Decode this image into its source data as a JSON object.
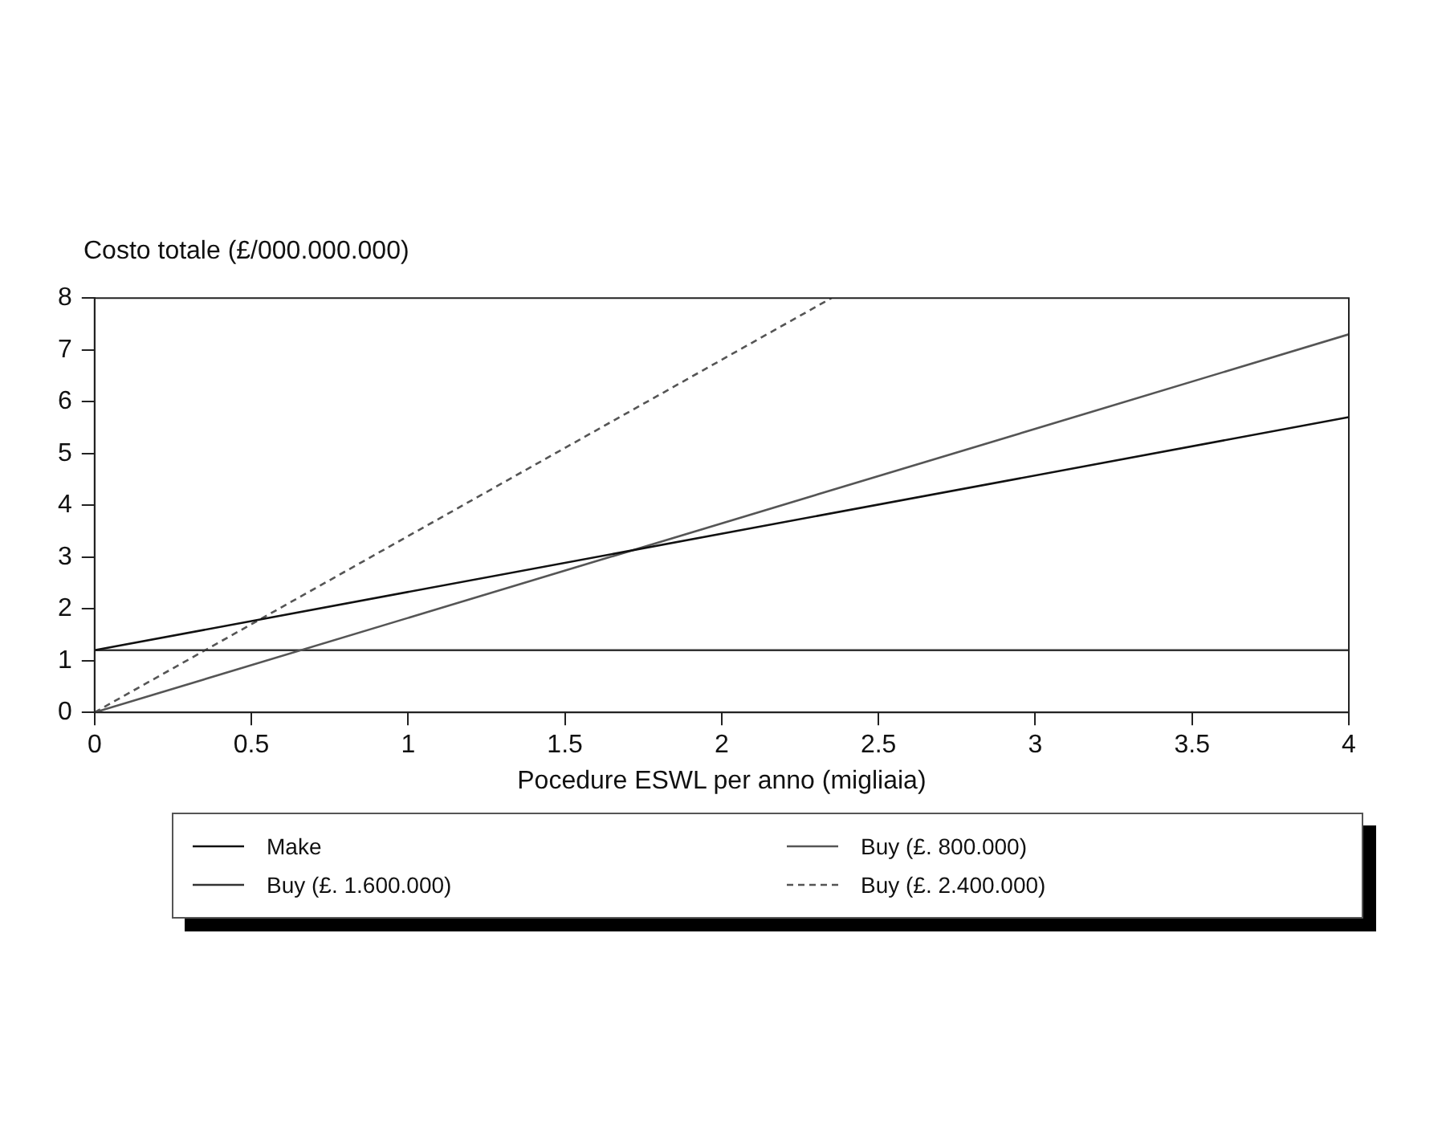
{
  "chart_data": {
    "type": "line",
    "ylabel": "Costo totale (£/000.000.000)",
    "xlabel": "Pocedure ESWL per anno (migliaia)",
    "xlim": [
      0,
      4
    ],
    "xticks": [
      0,
      0.5,
      1,
      1.5,
      2,
      2.5,
      3,
      3.5,
      4
    ],
    "ylim": [
      0,
      8
    ],
    "yticks": [
      0,
      1,
      2,
      3,
      4,
      5,
      6,
      7,
      8
    ],
    "grid": false,
    "legend": "bottom",
    "marker": "none",
    "series": [
      {
        "name": "Make",
        "color": "#111111",
        "line_style": "solid",
        "x": [
          0,
          4
        ],
        "values": [
          1.2,
          5.7
        ]
      },
      {
        "name": "Buy (£. 800.000)",
        "color": "#555555",
        "line_style": "solid",
        "x": [
          0,
          4
        ],
        "values": [
          0,
          7.3
        ]
      },
      {
        "name": "Buy (£. 1.600.000)",
        "color": "#333333",
        "line_style": "solid",
        "x": [
          0,
          4
        ],
        "values": [
          1.2,
          1.2
        ]
      },
      {
        "name": "Buy (£. 2.400.000)",
        "color": "#555555",
        "line_style": "dashed",
        "x": [
          0,
          2.35
        ],
        "values": [
          0,
          8
        ]
      }
    ]
  }
}
